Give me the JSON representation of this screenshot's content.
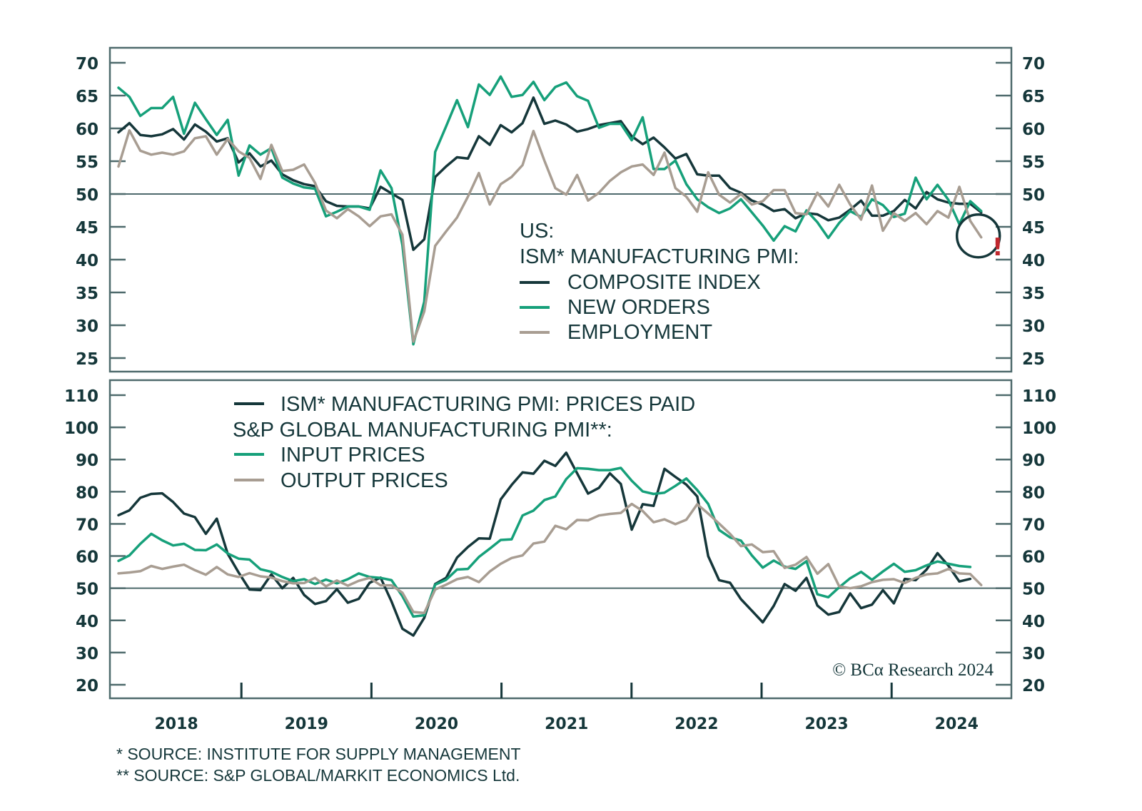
{
  "chart_data": [
    {
      "type": "line",
      "panel": "top",
      "title": "US: ISM* MANUFACTURING PMI:",
      "title_lines": [
        "US:",
        "ISM* MANUFACTURING PMI:"
      ],
      "ylim": [
        25,
        70
      ],
      "yticks": [
        70,
        65,
        60,
        55,
        50,
        45,
        40,
        35,
        30,
        25
      ],
      "reference_line": 50,
      "x_start": "2018-01",
      "x_end": "2024-06",
      "legend_position": "center-right",
      "annotation": {
        "type": "circle-highlight",
        "target": "last-point",
        "mark": "!"
      },
      "series": [
        {
          "name": "COMPOSITE INDEX",
          "color": "#15373a",
          "values": [
            59.4,
            60.8,
            59.0,
            58.8,
            59.1,
            59.9,
            58.3,
            60.6,
            59.5,
            58.0,
            58.5,
            54.8,
            56.2,
            54.2,
            55.1,
            53.0,
            52.1,
            51.5,
            51.2,
            48.9,
            48.2,
            48.1,
            48.1,
            47.8,
            51.1,
            50.1,
            49.1,
            41.5,
            43.1,
            52.6,
            54.2,
            55.6,
            55.4,
            58.8,
            57.5,
            60.5,
            59.4,
            60.8,
            64.7,
            60.7,
            61.2,
            60.6,
            59.5,
            59.9,
            60.5,
            60.8,
            61.1,
            58.8,
            57.6,
            58.6,
            57.1,
            55.4,
            56.1,
            53.0,
            52.8,
            52.8,
            50.9,
            50.2,
            49.0,
            48.4,
            47.4,
            47.7,
            46.3,
            47.1,
            46.9,
            46.0,
            46.4,
            47.6,
            49.0,
            46.7,
            46.7,
            47.4,
            49.1,
            47.8,
            50.3,
            49.2,
            48.7,
            48.5,
            48.5,
            47.2
          ]
        },
        {
          "name": "NEW ORDERS",
          "color": "#16a07a",
          "values": [
            66.2,
            64.8,
            61.9,
            63.1,
            63.1,
            64.8,
            59.2,
            63.9,
            61.4,
            59.0,
            61.3,
            52.8,
            57.4,
            56.0,
            57.0,
            52.5,
            51.6,
            51.0,
            50.8,
            46.6,
            47.3,
            48.1,
            48.1,
            47.6,
            53.6,
            50.9,
            42.2,
            27.1,
            33.6,
            56.4,
            60.3,
            64.3,
            60.2,
            66.7,
            65.1,
            67.9,
            64.8,
            65.1,
            67.1,
            64.3,
            66.3,
            67.0,
            64.9,
            64.2,
            60.1,
            60.7,
            60.7,
            58.2,
            61.7,
            53.8,
            53.8,
            55.1,
            51.5,
            49.2,
            48.0,
            47.1,
            47.8,
            49.2,
            47.2,
            45.2,
            42.9,
            45.1,
            44.3,
            47.5,
            45.7,
            43.3,
            45.6,
            47.4,
            46.5,
            49.2,
            48.3,
            46.5,
            47.0,
            52.5,
            49.2,
            51.4,
            49.1,
            45.4,
            48.9,
            47.4
          ]
        },
        {
          "name": "EMPLOYMENT",
          "color": "#a89d92",
          "values": [
            54.2,
            59.7,
            56.6,
            56.0,
            56.3,
            56.0,
            56.5,
            58.5,
            58.8,
            56.0,
            58.4,
            56.5,
            55.5,
            52.3,
            57.5,
            53.5,
            53.7,
            54.5,
            51.7,
            47.5,
            46.3,
            47.7,
            46.6,
            45.1,
            46.6,
            46.9,
            43.8,
            27.5,
            32.1,
            42.1,
            44.3,
            46.4,
            49.6,
            53.2,
            48.4,
            51.5,
            52.6,
            54.4,
            59.6,
            55.1,
            50.9,
            49.9,
            52.9,
            49.0,
            50.2,
            52.0,
            53.3,
            54.2,
            54.5,
            52.9,
            56.3,
            50.9,
            49.6,
            47.3,
            53.3,
            49.9,
            48.7,
            50.0,
            48.4,
            48.9,
            50.6,
            50.6,
            47.1,
            46.9,
            50.2,
            48.1,
            51.4,
            48.4,
            46.1,
            51.3,
            44.4,
            47.1,
            45.9,
            47.1,
            45.4,
            47.4,
            46.4,
            51.1,
            45.9,
            43.4
          ]
        }
      ],
      "legend": [
        {
          "label": "COMPOSITE INDEX",
          "color": "#15373a"
        },
        {
          "label": "NEW ORDERS",
          "color": "#16a07a"
        },
        {
          "label": "EMPLOYMENT",
          "color": "#a89d92"
        }
      ]
    },
    {
      "type": "line",
      "panel": "bottom",
      "ylim": [
        20,
        110
      ],
      "yticks": [
        110,
        100,
        90,
        80,
        70,
        60,
        50,
        40,
        30,
        20
      ],
      "reference_line": 50,
      "x_start": "2018-01",
      "x_end": "2024-06",
      "xticks": [
        "2018",
        "2019",
        "2020",
        "2021",
        "2022",
        "2023",
        "2024"
      ],
      "legend_position": "top-left",
      "series": [
        {
          "name": "ISM* MANUFACTURING PMI: PRICES PAID",
          "color": "#15373a",
          "values": [
            72.7,
            74.2,
            78.1,
            79.3,
            79.5,
            76.8,
            73.2,
            72.1,
            66.9,
            71.6,
            60.7,
            54.9,
            49.6,
            49.4,
            54.3,
            50.0,
            53.2,
            47.9,
            45.1,
            46.0,
            49.7,
            45.5,
            46.7,
            51.7,
            53.3,
            45.9,
            37.4,
            35.3,
            40.8,
            51.3,
            53.2,
            59.5,
            62.8,
            65.5,
            65.4,
            77.6,
            82.1,
            86.0,
            85.6,
            89.6,
            88.0,
            92.1,
            85.7,
            79.4,
            81.2,
            85.7,
            82.4,
            68.2,
            76.1,
            75.6,
            87.1,
            84.6,
            82.2,
            78.5,
            60.0,
            52.5,
            51.7,
            46.6,
            43.0,
            39.4,
            44.5,
            51.3,
            49.2,
            53.2,
            44.6,
            41.8,
            42.6,
            48.4,
            43.8,
            44.9,
            49.4,
            45.3,
            52.9,
            52.5,
            55.8,
            60.9,
            57.0,
            52.1,
            52.9
          ]
        },
        {
          "name": "INPUT PRICES",
          "color": "#16a07a",
          "values": [
            58.5,
            60.2,
            63.8,
            66.9,
            64.9,
            63.3,
            63.8,
            61.9,
            61.8,
            63.6,
            60.8,
            59.2,
            58.9,
            55.9,
            55.1,
            53.5,
            52.2,
            52.8,
            51.3,
            52.7,
            51.5,
            52.8,
            54.6,
            53.5,
            53.2,
            52.5,
            47.5,
            41.2,
            41.6,
            51.1,
            52.6,
            55.8,
            56.0,
            59.7,
            62.3,
            65.0,
            65.2,
            72.6,
            74.1,
            77.4,
            78.5,
            83.9,
            87.3,
            87.1,
            86.7,
            86.7,
            87.4,
            83.4,
            80.1,
            79.3,
            79.7,
            81.8,
            84.1,
            80.5,
            76.2,
            68.1,
            65.8,
            64.8,
            60.2,
            56.4,
            58.6,
            56.7,
            56.0,
            58.4,
            48.1,
            47.2,
            50.3,
            53.1,
            55.1,
            52.6,
            55.2,
            57.6,
            55.1,
            55.6,
            57.1,
            58.3,
            57.6,
            56.9,
            56.6
          ]
        },
        {
          "name": "OUTPUT PRICES",
          "color": "#a89d92",
          "values": [
            54.6,
            54.9,
            55.3,
            56.9,
            56.0,
            56.7,
            57.3,
            55.6,
            54.2,
            56.6,
            54.3,
            53.5,
            54.7,
            53.7,
            53.3,
            52.2,
            51.5,
            51.6,
            53.2,
            50.6,
            52.4,
            50.8,
            52.3,
            53.2,
            50.9,
            50.9,
            48.6,
            42.6,
            42.3,
            49.6,
            51.1,
            52.8,
            53.5,
            51.9,
            55.2,
            57.6,
            59.4,
            60.2,
            63.9,
            64.5,
            69.4,
            68.3,
            71.2,
            71.1,
            72.6,
            73.1,
            73.4,
            76.2,
            74.0,
            70.5,
            71.4,
            69.9,
            71.3,
            76.1,
            73.2,
            70.1,
            66.9,
            63.1,
            63.6,
            61.2,
            61.5,
            56.3,
            57.3,
            59.7,
            54.5,
            57.5,
            50.6,
            50.0,
            50.6,
            51.9,
            52.6,
            52.8,
            51.6,
            53.2,
            54.3,
            54.6,
            56.0,
            54.6,
            54.4,
            51.0
          ]
        }
      ],
      "legend": [
        {
          "label": "ISM* MANUFACTURING PMI: PRICES PAID",
          "color": "#15373a"
        },
        {
          "label": "S&P GLOBAL MANUFACTURING PMI**:",
          "color": null
        },
        {
          "label": "INPUT PRICES",
          "color": "#16a07a"
        },
        {
          "label": "OUTPUT PRICES",
          "color": "#a89d92"
        }
      ]
    }
  ],
  "xaxis": {
    "labels": [
      "2018",
      "2019",
      "2020",
      "2021",
      "2022",
      "2023",
      "2024"
    ]
  },
  "credit": "© BCα Research 2024",
  "alert_mark": "!",
  "footnotes": [
    "* SOURCE: INSTITUTE FOR SUPPLY MANAGEMENT",
    "** SOURCE: S&P GLOBAL/MARKIT ECONOMICS Ltd."
  ],
  "colors": {
    "frame": "#4e6a6c",
    "text": "#15373a",
    "accent_green": "#16a07a",
    "taupe": "#a89d92",
    "alert": "#c0272d"
  }
}
